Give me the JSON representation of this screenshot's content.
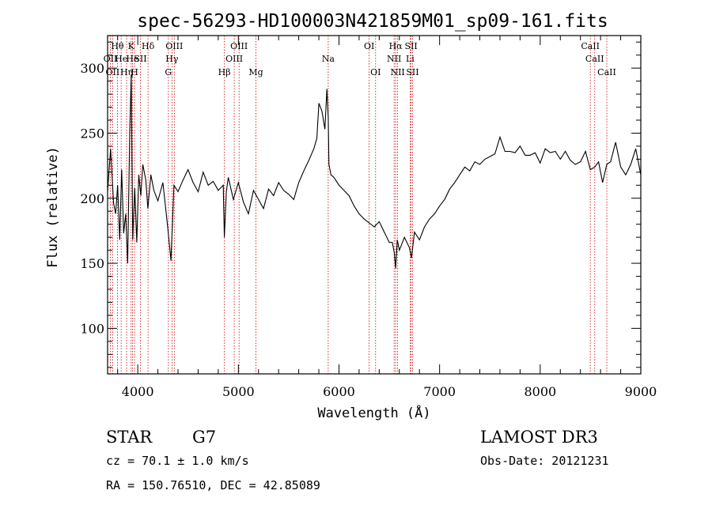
{
  "title": "spec-56293-HD100003N421859M01_sp09-161.fits",
  "info": {
    "class_label": "STAR",
    "subclass": "G7",
    "survey": "LAMOST DR3",
    "cz": "cz = 70.1 ± 1.0 km/s",
    "obs_date": "Obs-Date: 20121231",
    "coords": "RA = 150.76510, DEC =  42.85089"
  },
  "chart_data": {
    "type": "line",
    "title": "spec-56293-HD100003N421859M01_sp09-161.fits",
    "xlabel": "Wavelength (Å)",
    "ylabel": "Flux (relative)",
    "xlim": [
      3700,
      9000
    ],
    "ylim": [
      65,
      325
    ],
    "xticks": [
      4000,
      5000,
      6000,
      7000,
      8000,
      9000
    ],
    "yticks": [
      100,
      150,
      200,
      250,
      300
    ],
    "x_minor_step": 200,
    "y_minor_step": 10,
    "grid": false,
    "line_color": "#000000",
    "marker_color": "#cc0000",
    "series": [
      {
        "x": [
          3700,
          3730,
          3760,
          3780,
          3800,
          3820,
          3840,
          3860,
          3880,
          3900,
          3920,
          3935,
          3950,
          3970,
          3990,
          4010,
          4030,
          4050,
          4080,
          4100,
          4130,
          4160,
          4200,
          4250,
          4300,
          4330,
          4360,
          4400,
          4450,
          4500,
          4550,
          4600,
          4650,
          4700,
          4750,
          4800,
          4850,
          4861,
          4880,
          4900,
          4950,
          5000,
          5050,
          5100,
          5150,
          5200,
          5250,
          5300,
          5350,
          5400,
          5450,
          5500,
          5550,
          5600,
          5650,
          5700,
          5750,
          5780,
          5800,
          5830,
          5860,
          5880,
          5893,
          5900,
          5920,
          5950,
          6000,
          6050,
          6100,
          6150,
          6200,
          6250,
          6300,
          6350,
          6400,
          6450,
          6500,
          6530,
          6550,
          6563,
          6580,
          6600,
          6650,
          6700,
          6720,
          6750,
          6800,
          6850,
          6900,
          6950,
          7000,
          7050,
          7100,
          7150,
          7200,
          7250,
          7300,
          7350,
          7400,
          7450,
          7500,
          7550,
          7600,
          7650,
          7700,
          7750,
          7800,
          7850,
          7900,
          7950,
          8000,
          8050,
          8100,
          8150,
          8200,
          8250,
          8300,
          8350,
          8400,
          8450,
          8498,
          8542,
          8580,
          8620,
          8662,
          8700,
          8750,
          8800,
          8850,
          8900,
          8950,
          9000
        ],
        "values": [
          205,
          238,
          196,
          188,
          210,
          168,
          222,
          173,
          188,
          150,
          252,
          295,
          168,
          208,
          166,
          218,
          202,
          226,
          214,
          192,
          218,
          206,
          198,
          212,
          176,
          152,
          210,
          205,
          214,
          222,
          212,
          205,
          220,
          210,
          213,
          206,
          210,
          170,
          205,
          216,
          199,
          212,
          197,
          188,
          206,
          199,
          192,
          207,
          202,
          212,
          206,
          203,
          199,
          212,
          221,
          229,
          238,
          246,
          273,
          267,
          253,
          284,
          262,
          226,
          218,
          216,
          210,
          206,
          202,
          194,
          188,
          184,
          181,
          178,
          182,
          174,
          166,
          166,
          158,
          146,
          168,
          160,
          170,
          162,
          154,
          174,
          168,
          178,
          184,
          188,
          194,
          199,
          207,
          212,
          218,
          224,
          221,
          228,
          226,
          230,
          232,
          234,
          247,
          236,
          236,
          235,
          240,
          233,
          233,
          235,
          227,
          238,
          235,
          236,
          230,
          236,
          229,
          226,
          228,
          236,
          222,
          224,
          228,
          212,
          226,
          228,
          243,
          224,
          218,
          226,
          238,
          218
        ]
      }
    ],
    "lines": [
      {
        "wave": 3727,
        "label": "OII",
        "row": 1
      },
      {
        "wave": 3750,
        "label": "OII",
        "row": 2
      },
      {
        "wave": 3798,
        "label": "Hθ",
        "row": 0
      },
      {
        "wave": 3835,
        "label": "He",
        "row": 1
      },
      {
        "wave": 3889,
        "label": "Hη",
        "row": 2
      },
      {
        "wave": 3934,
        "label": "K",
        "row": 0
      },
      {
        "wave": 3947,
        "label": "He",
        "row": 1
      },
      {
        "wave": 3968,
        "label": "H",
        "row": 2
      },
      {
        "wave": 4026,
        "label": "SII",
        "row": 1
      },
      {
        "wave": 4102,
        "label": "Hδ",
        "row": 0
      },
      {
        "wave": 4304,
        "label": "G",
        "row": 2
      },
      {
        "wave": 4340,
        "label": "Hγ",
        "row": 1
      },
      {
        "wave": 4363,
        "label": "OIII",
        "row": 0
      },
      {
        "wave": 4861,
        "label": "Hβ",
        "row": 2
      },
      {
        "wave": 4959,
        "label": "OIII",
        "row": 1
      },
      {
        "wave": 5007,
        "label": "OIII",
        "row": 0
      },
      {
        "wave": 5175,
        "label": "Mg",
        "row": 2
      },
      {
        "wave": 5893,
        "label": "Na",
        "row": 1
      },
      {
        "wave": 6300,
        "label": "OI",
        "row": 0
      },
      {
        "wave": 6364,
        "label": "OI",
        "row": 2
      },
      {
        "wave": 6548,
        "label": "NII",
        "row": 1
      },
      {
        "wave": 6563,
        "label": "Hα",
        "row": 0
      },
      {
        "wave": 6583,
        "label": "NII",
        "row": 2
      },
      {
        "wave": 6707,
        "label": "Li",
        "row": 1
      },
      {
        "wave": 6717,
        "label": "SII",
        "row": 0
      },
      {
        "wave": 6731,
        "label": "SII",
        "row": 2
      },
      {
        "wave": 8498,
        "label": "CaII",
        "row": 0
      },
      {
        "wave": 8542,
        "label": "CaII",
        "row": 1
      },
      {
        "wave": 8662,
        "label": "CaII",
        "row": 2
      }
    ]
  }
}
